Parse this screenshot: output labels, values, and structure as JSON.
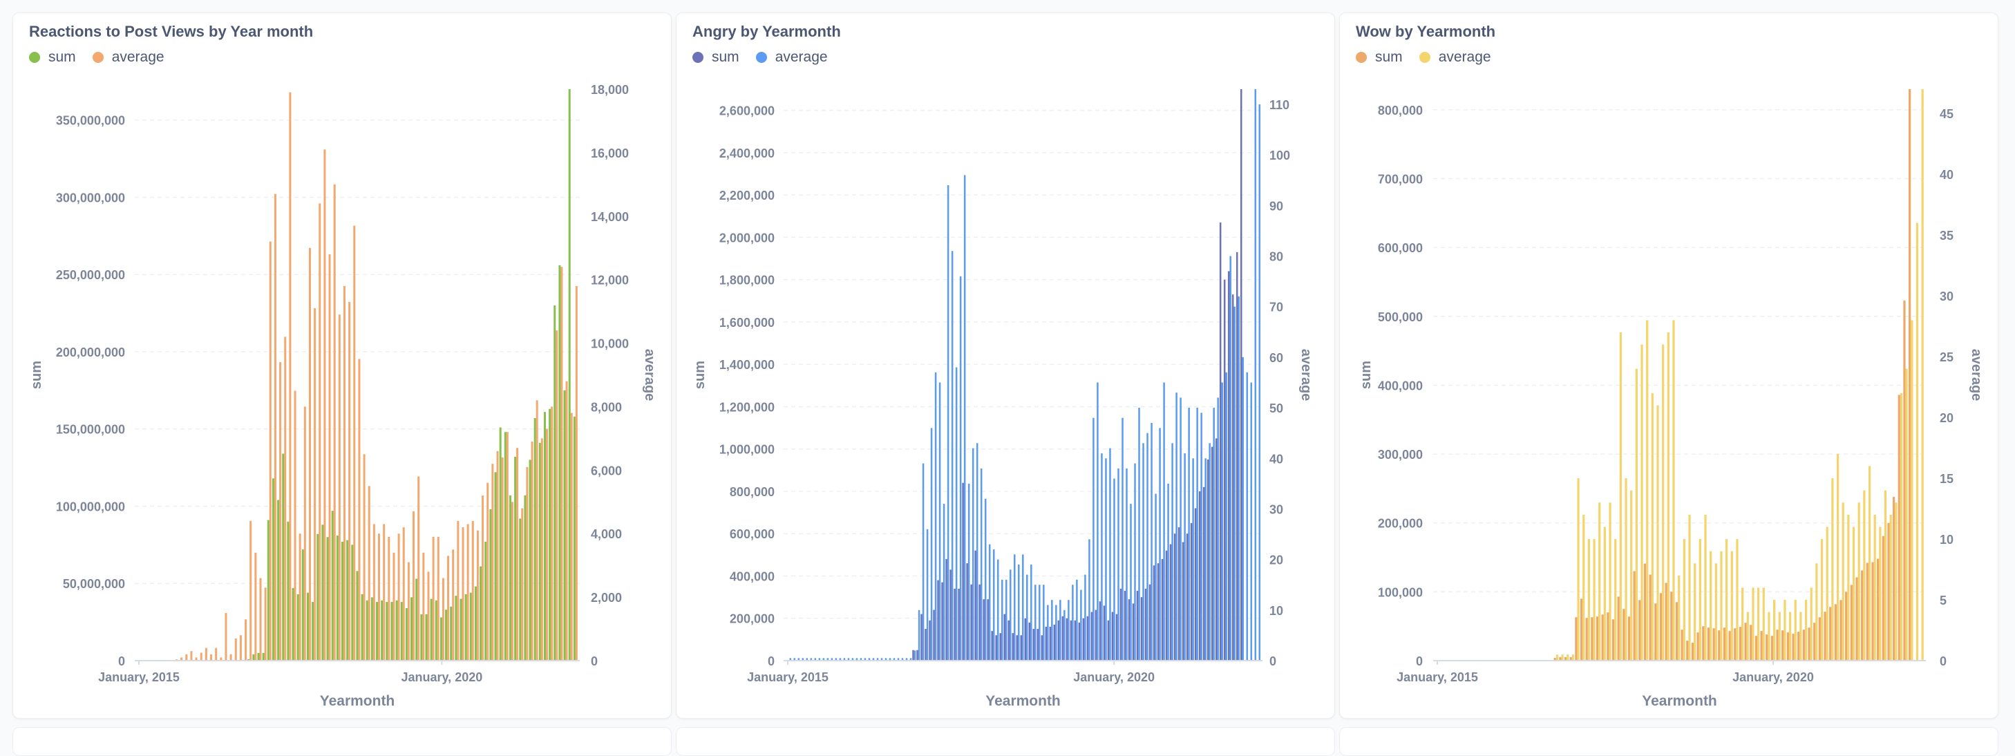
{
  "chart_data": [
    {
      "type": "bar",
      "title": "Reactions to Post Views by Year month",
      "xlabel": "Yearmonth",
      "ylabel_left": "sum",
      "ylabel_right": "average",
      "x_tick_labels": [
        "January, 2015",
        "January, 2020"
      ],
      "ylim_left": [
        0,
        370000000
      ],
      "ylim_right": [
        0,
        18000
      ],
      "y_ticks_left": [
        "0",
        "50,000,000",
        "100,000,000",
        "150,000,000",
        "200,000,000",
        "250,000,000",
        "300,000,000",
        "350,000,000"
      ],
      "y_ticks_right": [
        "0",
        "2,000",
        "4,000",
        "6,000",
        "8,000",
        "10,000",
        "12,000",
        "14,000",
        "16,000",
        "18,000"
      ],
      "series": [
        {
          "name": "sum",
          "axis": "left",
          "color": "#88bf4d",
          "values": [
            0,
            0,
            0,
            0,
            0,
            0,
            0,
            0,
            0,
            0,
            0,
            0,
            0,
            0,
            0,
            0,
            0,
            0,
            0,
            0,
            0,
            0,
            1000000,
            4000000,
            5000000,
            5000000,
            91000000,
            118000000,
            104000000,
            134000000,
            90000000,
            47000000,
            43000000,
            72000000,
            44000000,
            38000000,
            82000000,
            88000000,
            80000000,
            97000000,
            81000000,
            77000000,
            78000000,
            75000000,
            58000000,
            43000000,
            39000000,
            41000000,
            38000000,
            39000000,
            38000000,
            38000000,
            39000000,
            38000000,
            34000000,
            41000000,
            53000000,
            30000000,
            30000000,
            40000000,
            39000000,
            28000000,
            33000000,
            35000000,
            42000000,
            40000000,
            43000000,
            44000000,
            48000000,
            61000000,
            77000000,
            98000000,
            122000000,
            151000000,
            148000000,
            107000000,
            132000000,
            92000000,
            107000000,
            130000000,
            157000000,
            141000000,
            161000000,
            163000000,
            230000000,
            256000000,
            175000000,
            370000000,
            158000000
          ]
        },
        {
          "name": "average",
          "axis": "right",
          "color": "#f2a86f",
          "values": [
            0,
            0,
            0,
            0,
            0,
            0,
            0,
            40,
            100,
            200,
            300,
            100,
            250,
            400,
            200,
            400,
            100,
            1500,
            200,
            700,
            800,
            1300,
            4400,
            3400,
            2600,
            2300,
            13200,
            14700,
            9400,
            10200,
            17900,
            8500,
            4000,
            8000,
            13000,
            11100,
            14400,
            16100,
            12800,
            15000,
            10900,
            11800,
            11300,
            13700,
            9500,
            6500,
            5500,
            4300,
            4000,
            4300,
            3900,
            3400,
            4000,
            4200,
            3100,
            4700,
            5800,
            3400,
            2800,
            3900,
            3900,
            2600,
            3300,
            3500,
            4400,
            4200,
            4300,
            4400,
            4100,
            5200,
            5600,
            6200,
            6600,
            6400,
            7200,
            5000,
            6700,
            4800,
            6100,
            6900,
            8200,
            7000,
            7300,
            8000,
            10400,
            12400,
            8800,
            7800,
            11800
          ]
        }
      ]
    },
    {
      "type": "bar",
      "title": "Angry by Yearmonth",
      "xlabel": "Yearmonth",
      "ylabel_left": "sum",
      "ylabel_right": "average",
      "x_tick_labels": [
        "January, 2015",
        "January, 2020"
      ],
      "ylim_left": [
        0,
        2700000
      ],
      "ylim_right": [
        0,
        113
      ],
      "y_ticks_left": [
        "0",
        "200,000",
        "400,000",
        "600,000",
        "800,000",
        "1,000,000",
        "1,200,000",
        "1,400,000",
        "1,600,000",
        "1,800,000",
        "2,000,000",
        "2,200,000",
        "2,400,000",
        "2,600,000"
      ],
      "y_ticks_right": [
        "0",
        "10",
        "20",
        "30",
        "40",
        "50",
        "60",
        "70",
        "80",
        "90",
        "100",
        "110"
      ],
      "series": [
        {
          "name": "sum",
          "axis": "left",
          "color": "#6c72b7",
          "values": [
            0,
            0,
            0,
            0,
            0,
            0,
            0,
            0,
            0,
            0,
            0,
            0,
            0,
            0,
            0,
            0,
            0,
            0,
            0,
            0,
            0,
            0,
            0,
            0,
            0,
            0,
            0,
            0,
            0,
            0,
            50000,
            50000,
            220000,
            150000,
            190000,
            240000,
            380000,
            370000,
            480000,
            430000,
            340000,
            340000,
            840000,
            460000,
            360000,
            520000,
            360000,
            290000,
            290000,
            140000,
            120000,
            130000,
            220000,
            190000,
            130000,
            120000,
            120000,
            200000,
            180000,
            150000,
            150000,
            120000,
            160000,
            160000,
            170000,
            190000,
            210000,
            200000,
            190000,
            190000,
            180000,
            200000,
            210000,
            230000,
            240000,
            280000,
            260000,
            190000,
            230000,
            220000,
            340000,
            330000,
            290000,
            270000,
            330000,
            300000,
            340000,
            360000,
            450000,
            460000,
            480000,
            520000,
            550000,
            600000,
            630000,
            560000,
            600000,
            650000,
            720000,
            800000,
            820000,
            950000,
            1010000,
            1050000,
            2070000,
            1800000,
            1840000,
            1730000,
            1930000,
            2700000
          ]
        },
        {
          "name": "average",
          "axis": "right",
          "color": "#5b9bf2",
          "values": [
            0.5,
            0.5,
            0.5,
            0.5,
            0.5,
            0.5,
            0.5,
            0.5,
            0.5,
            0.5,
            0.5,
            0.5,
            0.5,
            0.5,
            0.5,
            0.5,
            0.5,
            0.5,
            0.5,
            0.5,
            0.5,
            0.5,
            0.5,
            0.5,
            0.5,
            0.5,
            0.5,
            0.5,
            0.5,
            0.5,
            2,
            10,
            39,
            26,
            46,
            57,
            55,
            31,
            94,
            81,
            58,
            76,
            96,
            35,
            42,
            43,
            38,
            32,
            23,
            22,
            20,
            16,
            16,
            18,
            21,
            19,
            21,
            17,
            19,
            15,
            15,
            15,
            11,
            12,
            11,
            12,
            10,
            12,
            15,
            16,
            14,
            17,
            24,
            48,
            55,
            41,
            40,
            42,
            36,
            38,
            48,
            38,
            31,
            39,
            50,
            43,
            45,
            47,
            33,
            46,
            55,
            35,
            43,
            53,
            52,
            41,
            50,
            40,
            50,
            49,
            40,
            43,
            50,
            52,
            55,
            57,
            80,
            70,
            72,
            60,
            57,
            55,
            113,
            110
          ]
        }
      ]
    },
    {
      "type": "bar",
      "title": "Wow by Yearmonth",
      "xlabel": "Yearmonth",
      "ylabel_left": "sum",
      "ylabel_right": "average",
      "x_tick_labels": [
        "January, 2015",
        "January, 2020"
      ],
      "ylim_left": [
        0,
        830000
      ],
      "ylim_right": [
        0,
        47
      ],
      "y_ticks_left": [
        "0",
        "100,000",
        "200,000",
        "300,000",
        "400,000",
        "500,000",
        "600,000",
        "700,000",
        "800,000"
      ],
      "y_ticks_right": [
        "0",
        "5",
        "10",
        "15",
        "20",
        "25",
        "30",
        "35",
        "40",
        "45"
      ],
      "series": [
        {
          "name": "sum",
          "axis": "left",
          "color": "#eda96a",
          "values": [
            0,
            0,
            0,
            0,
            0,
            0,
            0,
            0,
            0,
            0,
            0,
            0,
            0,
            0,
            0,
            0,
            0,
            0,
            0,
            0,
            0,
            0,
            4000,
            5000,
            5000,
            5000,
            63000,
            90000,
            62000,
            63000,
            64000,
            67000,
            70000,
            60000,
            93000,
            75000,
            64000,
            130000,
            88000,
            141000,
            125000,
            83000,
            98000,
            113000,
            100000,
            85000,
            45000,
            29000,
            26000,
            41000,
            50000,
            48000,
            47000,
            44000,
            48000,
            43000,
            47000,
            49000,
            55000,
            52000,
            36000,
            43000,
            38000,
            36000,
            45000,
            44000,
            41000,
            39000,
            42000,
            45000,
            48000,
            55000,
            63000,
            71000,
            78000,
            82000,
            88000,
            100000,
            110000,
            121000,
            131000,
            142000,
            143000,
            148000,
            181000,
            200000,
            238000,
            386000,
            523000,
            830000
          ]
        },
        {
          "name": "average",
          "axis": "right",
          "color": "#f4d56d",
          "values": [
            0,
            0,
            0,
            0,
            0,
            0,
            0,
            0,
            0,
            0,
            0,
            0,
            0,
            0,
            0,
            0,
            0,
            0,
            0,
            0,
            0,
            0,
            0.5,
            0.5,
            0.5,
            0.5,
            15,
            12,
            10,
            10,
            13,
            11,
            13,
            10,
            27,
            15,
            14,
            24,
            26,
            28,
            22,
            21,
            26,
            27,
            28,
            7,
            10,
            12,
            8,
            10,
            12,
            9,
            8,
            9,
            10,
            9,
            10,
            6,
            4,
            6,
            6,
            6,
            4,
            5,
            4,
            5,
            4,
            5,
            4,
            5,
            6,
            8,
            10,
            11,
            15,
            17,
            13,
            12,
            11,
            13,
            14,
            16,
            12,
            11,
            14,
            12,
            13,
            22,
            24,
            28,
            36,
            47
          ]
        }
      ]
    }
  ],
  "panels": [
    {
      "title": "Reactions to Post Views by Year month",
      "legend": [
        {
          "label": "sum",
          "color": "#88bf4d"
        },
        {
          "label": "average",
          "color": "#f2a86f"
        }
      ]
    },
    {
      "title": "Angry by Yearmonth",
      "legend": [
        {
          "label": "sum",
          "color": "#6c72b7"
        },
        {
          "label": "average",
          "color": "#5b9bf2"
        }
      ]
    },
    {
      "title": "Wow by Yearmonth",
      "legend": [
        {
          "label": "sum",
          "color": "#eda96a"
        },
        {
          "label": "average",
          "color": "#f4d56d"
        }
      ]
    }
  ]
}
